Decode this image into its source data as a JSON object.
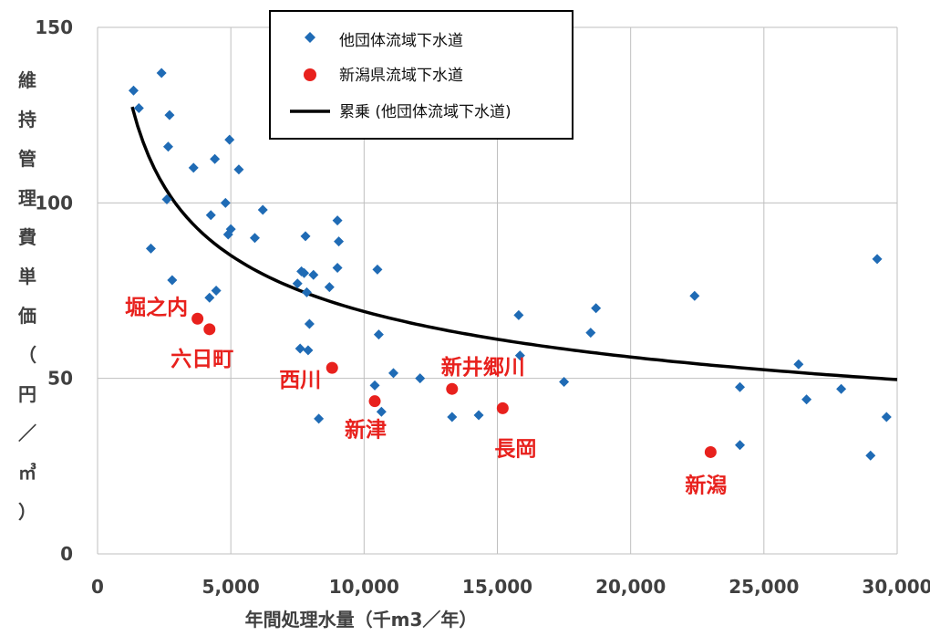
{
  "chart_data": {
    "type": "scatter",
    "xlabel": "年間処理水量（千m3／年）",
    "ylabel": "維持管理費単価（円／㎥）",
    "ylabel_chars": [
      "維",
      "持",
      "管",
      "理",
      "費",
      "単",
      "価",
      "（",
      "円",
      "／",
      "㎥",
      "）"
    ],
    "xlim": [
      0,
      30000
    ],
    "ylim": [
      0,
      150
    ],
    "xticks": [
      0,
      5000,
      10000,
      15000,
      20000,
      25000,
      30000
    ],
    "xtick_labels": [
      "0",
      "5,000",
      "10,000",
      "15,000",
      "20,000",
      "25,000",
      "30,000"
    ],
    "yticks": [
      0,
      50,
      100,
      150
    ],
    "ytick_labels": [
      "0",
      "50",
      "100",
      "150"
    ],
    "grid": true,
    "legend_position": "top-center",
    "colors": {
      "other": "#1f6bb5",
      "niigata": "#e8211d",
      "curve": "#000000",
      "annotation": "#e8211d"
    },
    "series": [
      {
        "name": "他団体流域下水道",
        "marker": "diamond",
        "points": [
          [
            1350,
            132
          ],
          [
            1550,
            127
          ],
          [
            2000,
            87
          ],
          [
            2400,
            137
          ],
          [
            2600,
            101
          ],
          [
            2650,
            116
          ],
          [
            2700,
            125
          ],
          [
            2800,
            78
          ],
          [
            3600,
            110
          ],
          [
            4200,
            73
          ],
          [
            4250,
            96.5
          ],
          [
            4400,
            112.5
          ],
          [
            4450,
            75
          ],
          [
            4800,
            100
          ],
          [
            4900,
            91
          ],
          [
            4950,
            118
          ],
          [
            5000,
            92.5
          ],
          [
            5300,
            109.5
          ],
          [
            5900,
            90
          ],
          [
            6200,
            98
          ],
          [
            7500,
            77
          ],
          [
            7600,
            58.5
          ],
          [
            7650,
            80.5
          ],
          [
            7750,
            80
          ],
          [
            7800,
            90.5
          ],
          [
            7850,
            74.5
          ],
          [
            7900,
            58
          ],
          [
            7950,
            65.5
          ],
          [
            8100,
            79.5
          ],
          [
            8300,
            38.5
          ],
          [
            8700,
            76
          ],
          [
            9000,
            81.5
          ],
          [
            9000,
            95
          ],
          [
            9050,
            89
          ],
          [
            10400,
            48
          ],
          [
            10500,
            81
          ],
          [
            10550,
            62.5
          ],
          [
            10650,
            40.5
          ],
          [
            11100,
            51.5
          ],
          [
            12100,
            50
          ],
          [
            13300,
            39
          ],
          [
            14300,
            39.5
          ],
          [
            15800,
            68
          ],
          [
            15850,
            56.5
          ],
          [
            17500,
            49
          ],
          [
            18500,
            63
          ],
          [
            18700,
            70
          ],
          [
            22400,
            73.5
          ],
          [
            24100,
            47.5
          ],
          [
            24100,
            31
          ],
          [
            26300,
            54
          ],
          [
            26600,
            44
          ],
          [
            27900,
            47
          ],
          [
            29000,
            28
          ],
          [
            29250,
            84
          ],
          [
            29600,
            39
          ]
        ]
      },
      {
        "name": "新潟県流域下水道",
        "marker": "circle",
        "points": [
          {
            "label": "堀之内",
            "x": 3750,
            "y": 67
          },
          {
            "label": "六日町",
            "x": 4200,
            "y": 64
          },
          {
            "label": "西川",
            "x": 8800,
            "y": 53
          },
          {
            "label": "新津",
            "x": 10400,
            "y": 43.5
          },
          {
            "label": "新井郷川",
            "x": 13300,
            "y": 47
          },
          {
            "label": "長岡",
            "x": 15200,
            "y": 41.5
          },
          {
            "label": "新潟",
            "x": 23000,
            "y": 29
          }
        ]
      },
      {
        "name": "累乗 (他団体流域下水道)",
        "marker": "line",
        "fit": {
          "kind": "power",
          "a": 1094.4,
          "b": -0.3
        },
        "x_range": [
          1300,
          30000
        ]
      }
    ]
  }
}
